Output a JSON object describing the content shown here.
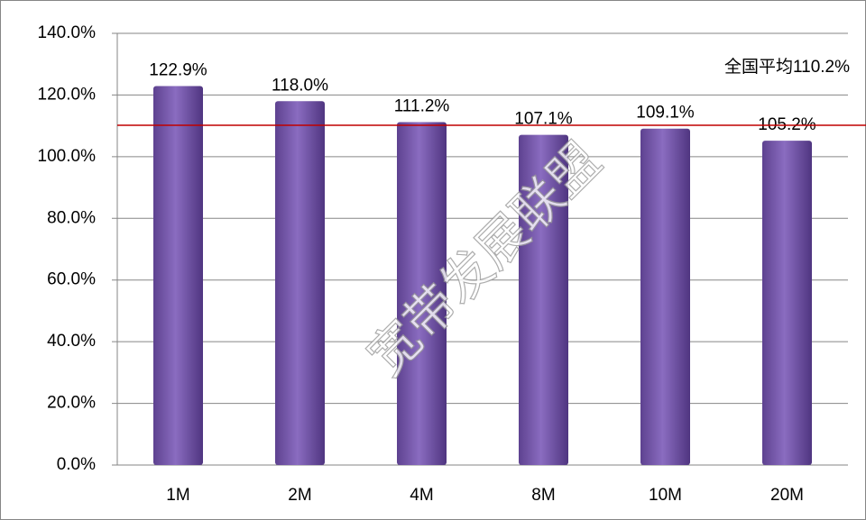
{
  "chart_data": {
    "type": "bar",
    "categories": [
      "1M",
      "2M",
      "4M",
      "8M",
      "10M",
      "20M"
    ],
    "values": [
      122.9,
      118.0,
      111.2,
      107.1,
      109.1,
      105.2
    ],
    "value_labels": [
      "122.9%",
      "118.0%",
      "111.2%",
      "107.1%",
      "109.1%",
      "105.2%"
    ],
    "color": "#7f5fb0",
    "ylim": [
      0,
      140
    ],
    "yticks": [
      {
        "value": 0,
        "label": "0.0%"
      },
      {
        "value": 20,
        "label": "20.0%"
      },
      {
        "value": 40,
        "label": "40.0%"
      },
      {
        "value": 60,
        "label": "60.0%"
      },
      {
        "value": 80,
        "label": "80.0%"
      },
      {
        "value": 100,
        "label": "100.0%"
      },
      {
        "value": 120,
        "label": "120.0%"
      },
      {
        "value": 140,
        "label": "140.0%"
      }
    ],
    "grid": true,
    "reference_line": {
      "value": 110.2,
      "label": "全国平均110.2%",
      "color": "#c00000"
    },
    "watermark": "宽带发展联盟"
  }
}
